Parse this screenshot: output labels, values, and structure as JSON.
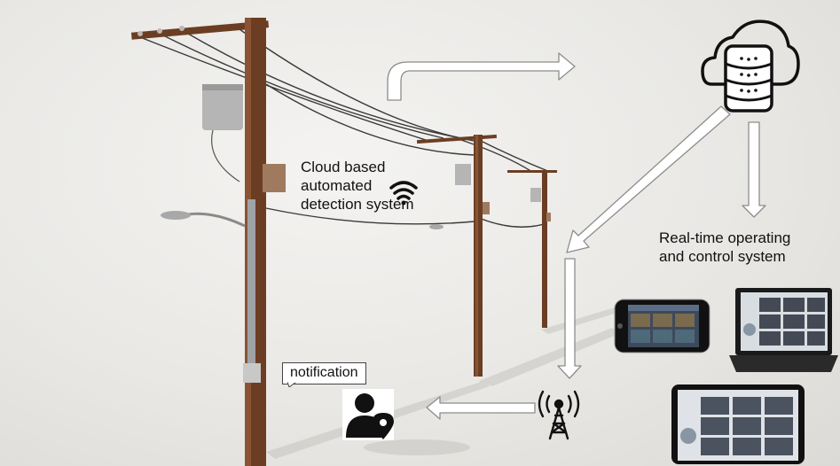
{
  "labels": {
    "cloud_line1": "Cloud based",
    "cloud_line2": "automated",
    "cloud_line3": "detection system",
    "realtime_line1": "Real-time operating",
    "realtime_line2": "and control system",
    "notification": "notification"
  },
  "icons": [
    "wifi-icon",
    "cloud-database-icon",
    "antenna-icon",
    "user-location-icon",
    "phone-device",
    "laptop-device",
    "tablet-device"
  ],
  "colors": {
    "pole": "#6b3e24",
    "arrow_fill": "#ffffff",
    "arrow_stroke": "#8c8c8c",
    "icon": "#111111"
  }
}
